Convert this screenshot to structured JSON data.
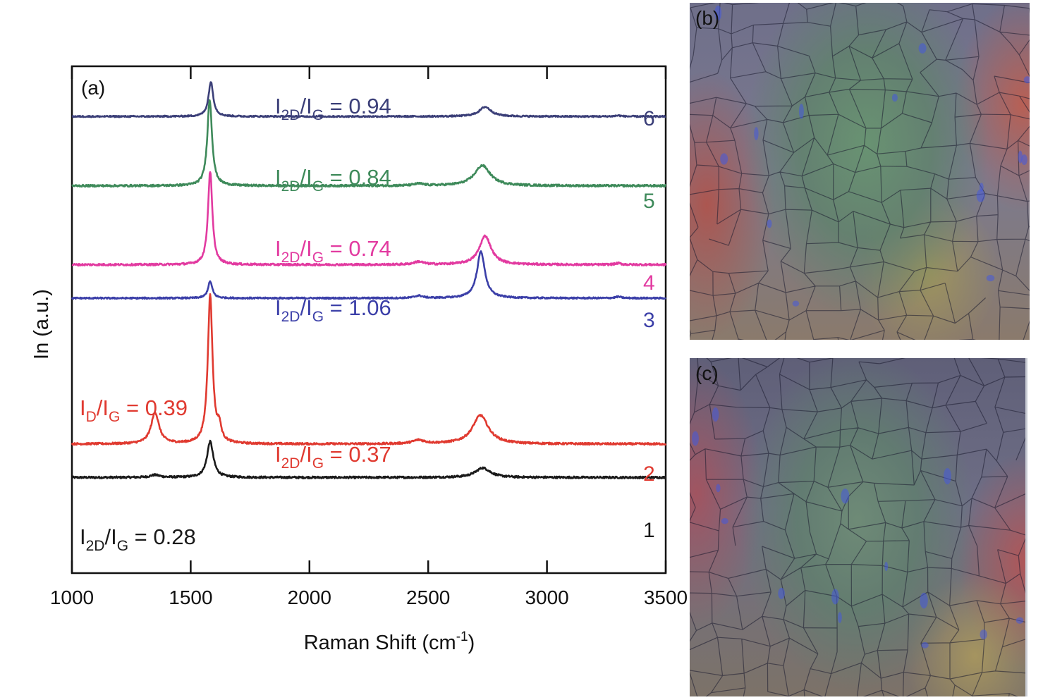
{
  "chart_data": {
    "type": "line",
    "panel_label": "(a)",
    "xlabel": "Raman Shift (cm",
    "xlabel_sup": "-1",
    "xlabel_close": ")",
    "ylabel": "In (a.u.)",
    "xlim": [
      1000,
      3500
    ],
    "xticks": [
      1000,
      1500,
      2000,
      2500,
      3000,
      3500
    ],
    "xtick_labels": [
      "1000",
      "1500",
      "2000",
      "2500",
      "3000",
      "3500"
    ],
    "grid": false,
    "series": [
      {
        "name": "1",
        "color": "#1a1a1a",
        "baseline": 0.0,
        "noise": 0.004,
        "peaks": [
          {
            "x": 1582,
            "h": 0.15,
            "w": 16
          },
          {
            "x": 2730,
            "h": 0.04,
            "w": 38
          },
          {
            "x": 1350,
            "h": 0.01,
            "w": 25
          }
        ],
        "annotation": {
          "main": "I",
          "sub1": "2D",
          "mid": "/I",
          "sub2": "G",
          "value": " = 0.28"
        }
      },
      {
        "name": "2",
        "color": "#e03a30",
        "baseline": 0.14,
        "noise": 0.004,
        "peaks": [
          {
            "x": 1350,
            "h": 0.13,
            "w": 20
          },
          {
            "x": 1582,
            "h": 0.62,
            "w": 12
          },
          {
            "x": 1620,
            "h": 0.06,
            "w": 10
          },
          {
            "x": 2720,
            "h": 0.12,
            "w": 40
          },
          {
            "x": 2460,
            "h": 0.015,
            "w": 30
          }
        ],
        "annotation": {
          "main": "I",
          "sub1": "2D",
          "mid": "/I",
          "sub2": "G",
          "value": " = 0.37"
        },
        "annotation2": {
          "main": "I",
          "sub1": "D",
          "mid": "/I",
          "sub2": "G",
          "value": " = 0.39"
        }
      },
      {
        "name": "3",
        "color": "#3b3fa8",
        "baseline": 0.75,
        "noise": 0.003,
        "peaks": [
          {
            "x": 1582,
            "h": 0.07,
            "w": 11
          },
          {
            "x": 2722,
            "h": 0.195,
            "w": 20
          },
          {
            "x": 2460,
            "h": 0.01,
            "w": 20
          },
          {
            "x": 3300,
            "h": 0.006,
            "w": 15
          }
        ],
        "annotation": {
          "main": "I",
          "sub1": "2D",
          "mid": "/I",
          "sub2": "G",
          "value": " = 1.06"
        }
      },
      {
        "name": "4",
        "color": "#e23aa0",
        "baseline": 0.89,
        "noise": 0.004,
        "peaks": [
          {
            "x": 1582,
            "h": 0.39,
            "w": 11
          },
          {
            "x": 2740,
            "h": 0.12,
            "w": 30
          },
          {
            "x": 2460,
            "h": 0.012,
            "w": 25
          },
          {
            "x": 3300,
            "h": 0.006,
            "w": 15
          }
        ],
        "annotation": {
          "main": "I",
          "sub1": "2D",
          "mid": "/I",
          "sub2": "G",
          "value": " = 0.74"
        }
      },
      {
        "name": "5",
        "color": "#3e8a5a",
        "baseline": 1.22,
        "noise": 0.004,
        "peaks": [
          {
            "x": 1580,
            "h": 0.36,
            "w": 12
          },
          {
            "x": 2728,
            "h": 0.085,
            "w": 40
          },
          {
            "x": 2460,
            "h": 0.008,
            "w": 25
          }
        ],
        "annotation": {
          "main": "I",
          "sub1": "2D",
          "mid": "/I",
          "sub2": "G",
          "value": " = 0.84"
        }
      },
      {
        "name": "6",
        "color": "#3b3f78",
        "baseline": 1.51,
        "noise": 0.003,
        "peaks": [
          {
            "x": 1585,
            "h": 0.145,
            "w": 12
          },
          {
            "x": 2740,
            "h": 0.04,
            "w": 30
          },
          {
            "x": 3300,
            "h": 0.004,
            "w": 15
          }
        ],
        "annotation": {
          "main": "I",
          "sub1": "2D",
          "mid": "/I",
          "sub2": "G",
          "value": " = 0.94"
        }
      }
    ]
  },
  "panels": {
    "b_label": "(b)",
    "c_label": "(c)"
  }
}
